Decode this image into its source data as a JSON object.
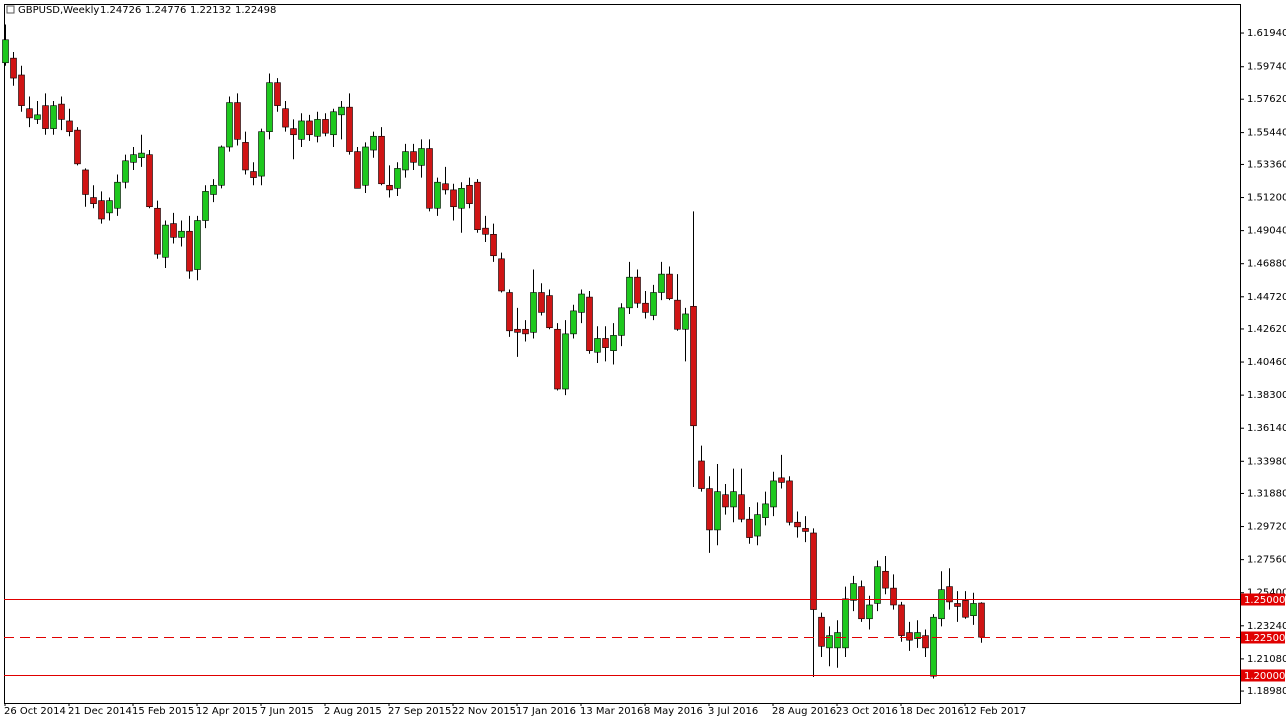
{
  "chart_data": {
    "type": "candlestick",
    "title": "GBPUSD,Weekly",
    "header_ohlc": [
      1.24726,
      1.24776,
      1.22132,
      1.22498
    ],
    "categories": [
      "26 Oct 2014",
      null,
      null,
      null,
      null,
      null,
      null,
      null,
      "21 Dec 2014",
      null,
      null,
      null,
      null,
      null,
      null,
      null,
      "15 Feb 2015",
      null,
      null,
      null,
      null,
      null,
      null,
      null,
      "12 Apr 2015",
      null,
      null,
      null,
      null,
      null,
      null,
      null,
      "7 Jun 2015",
      null,
      null,
      null,
      null,
      null,
      null,
      null,
      "2 Aug 2015",
      null,
      null,
      null,
      null,
      null,
      null,
      null,
      "27 Sep 2015",
      null,
      null,
      null,
      null,
      null,
      null,
      null,
      "22 Nov 2015",
      null,
      null,
      null,
      null,
      null,
      null,
      null,
      "17 Jan 2016",
      null,
      null,
      null,
      null,
      null,
      null,
      null,
      "13 Mar 2016",
      null,
      null,
      null,
      null,
      null,
      null,
      null,
      "8 May 2016",
      null,
      null,
      null,
      null,
      null,
      null,
      null,
      "3 Jul 2016",
      null,
      null,
      null,
      null,
      null,
      null,
      null,
      "28 Aug 2016",
      null,
      null,
      null,
      null,
      null,
      null,
      null,
      "23 Oct 2016",
      null,
      null,
      null,
      null,
      null,
      null,
      null,
      "18 Dec 2016",
      null,
      null,
      null,
      null,
      null,
      null,
      null,
      "12 Feb 2017",
      null,
      null
    ],
    "open": [
      1.6,
      1.603,
      1.592,
      1.57,
      1.563,
      1.572,
      1.557,
      1.573,
      1.562,
      1.556,
      1.53,
      1.512,
      1.51,
      1.502,
      1.505,
      1.522,
      1.535,
      1.538,
      1.54,
      1.505,
      1.473,
      1.495,
      1.486,
      1.49,
      1.465,
      1.497,
      1.514,
      1.52,
      1.545,
      1.574,
      1.548,
      1.529,
      1.526,
      1.555,
      1.587,
      1.57,
      1.557,
      1.55,
      1.562,
      1.552,
      1.563,
      1.553,
      1.566,
      1.571,
      1.542,
      1.52,
      1.543,
      1.552,
      1.52,
      1.518,
      1.53,
      1.542,
      1.533,
      1.544,
      1.505,
      1.521,
      1.517,
      1.505,
      1.52,
      1.522,
      1.492,
      1.488,
      1.472,
      1.45,
      1.426,
      1.426,
      1.424,
      1.45,
      1.448,
      1.426,
      1.387,
      1.423,
      1.437,
      1.447,
      1.411,
      1.42,
      1.412,
      1.422,
      1.44,
      1.46,
      1.443,
      1.435,
      1.45,
      1.462,
      1.445,
      1.426,
      1.441,
      1.34,
      1.322,
      1.295,
      1.318,
      1.31,
      1.318,
      1.302,
      1.291,
      1.303,
      1.31,
      1.329,
      1.327,
      1.3,
      1.296,
      1.293,
      1.238,
      1.218,
      1.218,
      1.218,
      1.249,
      1.258,
      1.237,
      1.247,
      1.268,
      1.257,
      1.246,
      1.228,
      1.224,
      1.226,
      1.1995,
      1.237,
      1.258,
      1.247,
      1.249,
      1.239,
      1.24726
    ],
    "high": [
      1.625,
      1.607,
      1.598,
      1.578,
      1.575,
      1.58,
      1.575,
      1.578,
      1.57,
      1.558,
      1.531,
      1.52,
      1.516,
      1.512,
      1.527,
      1.54,
      1.545,
      1.553,
      1.543,
      1.51,
      1.497,
      1.502,
      1.497,
      1.5,
      1.5,
      1.52,
      1.524,
      1.546,
      1.578,
      1.58,
      1.555,
      1.535,
      1.557,
      1.593,
      1.59,
      1.575,
      1.563,
      1.567,
      1.566,
      1.568,
      1.567,
      1.57,
      1.575,
      1.58,
      1.545,
      1.548,
      1.555,
      1.558,
      1.533,
      1.535,
      1.547,
      1.547,
      1.55,
      1.55,
      1.525,
      1.532,
      1.521,
      1.522,
      1.525,
      1.524,
      1.5,
      1.495,
      1.476,
      1.452,
      1.44,
      1.432,
      1.465,
      1.456,
      1.452,
      1.43,
      1.432,
      1.442,
      1.452,
      1.451,
      1.428,
      1.428,
      1.43,
      1.443,
      1.47,
      1.465,
      1.451,
      1.455,
      1.47,
      1.467,
      1.462,
      1.44,
      1.503,
      1.35,
      1.33,
      1.338,
      1.325,
      1.335,
      1.335,
      1.31,
      1.313,
      1.32,
      1.333,
      1.344,
      1.33,
      1.307,
      1.304,
      1.296,
      1.241,
      1.232,
      1.236,
      1.258,
      1.265,
      1.262,
      1.252,
      1.275,
      1.278,
      1.266,
      1.248,
      1.235,
      1.236,
      1.23,
      1.24,
      1.268,
      1.27,
      1.255,
      1.255,
      1.254,
      1.24776
    ],
    "low": [
      1.598,
      1.585,
      1.568,
      1.558,
      1.56,
      1.553,
      1.553,
      1.556,
      1.552,
      1.533,
      1.506,
      1.505,
      1.495,
      1.497,
      1.5,
      1.518,
      1.53,
      1.532,
      1.505,
      1.472,
      1.466,
      1.482,
      1.48,
      1.459,
      1.458,
      1.492,
      1.509,
      1.518,
      1.542,
      1.546,
      1.527,
      1.52,
      1.52,
      1.55,
      1.568,
      1.555,
      1.537,
      1.545,
      1.549,
      1.548,
      1.552,
      1.545,
      1.55,
      1.54,
      1.518,
      1.515,
      1.538,
      1.52,
      1.512,
      1.513,
      1.525,
      1.53,
      1.525,
      1.503,
      1.5,
      1.514,
      1.497,
      1.489,
      1.505,
      1.489,
      1.483,
      1.47,
      1.45,
      1.421,
      1.408,
      1.418,
      1.42,
      1.435,
      1.426,
      1.386,
      1.383,
      1.42,
      1.43,
      1.41,
      1.404,
      1.405,
      1.403,
      1.415,
      1.436,
      1.44,
      1.433,
      1.432,
      1.445,
      1.445,
      1.425,
      1.405,
      1.323,
      1.32,
      1.28,
      1.285,
      1.305,
      1.3,
      1.3,
      1.286,
      1.285,
      1.298,
      1.304,
      1.322,
      1.298,
      1.29,
      1.287,
      1.199,
      1.212,
      1.206,
      1.205,
      1.212,
      1.242,
      1.235,
      1.23,
      1.242,
      1.253,
      1.243,
      1.222,
      1.216,
      1.218,
      1.212,
      1.198,
      1.232,
      1.243,
      1.235,
      1.237,
      1.233,
      1.22132
    ],
    "close": [
      1.615,
      1.59,
      1.572,
      1.564,
      1.566,
      1.557,
      1.572,
      1.563,
      1.555,
      1.534,
      1.514,
      1.508,
      1.498,
      1.51,
      1.522,
      1.536,
      1.54,
      1.541,
      1.506,
      1.475,
      1.494,
      1.486,
      1.49,
      1.464,
      1.497,
      1.516,
      1.52,
      1.545,
      1.574,
      1.55,
      1.53,
      1.525,
      1.555,
      1.587,
      1.572,
      1.558,
      1.553,
      1.562,
      1.553,
      1.563,
      1.554,
      1.568,
      1.571,
      1.542,
      1.518,
      1.545,
      1.552,
      1.521,
      1.517,
      1.531,
      1.542,
      1.535,
      1.544,
      1.505,
      1.522,
      1.517,
      1.506,
      1.518,
      1.508,
      1.491,
      1.488,
      1.474,
      1.451,
      1.425,
      1.424,
      1.423,
      1.45,
      1.437,
      1.427,
      1.387,
      1.423,
      1.438,
      1.449,
      1.412,
      1.42,
      1.414,
      1.422,
      1.44,
      1.46,
      1.443,
      1.437,
      1.45,
      1.462,
      1.446,
      1.426,
      1.436,
      1.363,
      1.322,
      1.295,
      1.32,
      1.31,
      1.32,
      1.302,
      1.29,
      1.305,
      1.312,
      1.327,
      1.326,
      1.3,
      1.297,
      1.294,
      1.243,
      1.219,
      1.226,
      1.228,
      1.25,
      1.26,
      1.237,
      1.246,
      1.271,
      1.257,
      1.246,
      1.226,
      1.223,
      1.228,
      1.218,
      1.238,
      1.256,
      1.248,
      1.245,
      1.238,
      1.247,
      1.22498
    ],
    "up_color": "#1ec81e",
    "down_color": "#d01414",
    "ylim": [
      1.182,
      1.6377
    ],
    "yticks": [
      {
        "value": 1.6194,
        "label": "1.61940"
      },
      {
        "value": 1.5974,
        "label": "1.59740"
      },
      {
        "value": 1.5762,
        "label": "1.57620"
      },
      {
        "value": 1.5544,
        "label": "1.55440"
      },
      {
        "value": 1.5336,
        "label": "1.53360"
      },
      {
        "value": 1.512,
        "label": "1.51200"
      },
      {
        "value": 1.4904,
        "label": "1.49040"
      },
      {
        "value": 1.4688,
        "label": "1.46880"
      },
      {
        "value": 1.4472,
        "label": "1.44720"
      },
      {
        "value": 1.4262,
        "label": "1.42620"
      },
      {
        "value": 1.4046,
        "label": "1.40460"
      },
      {
        "value": 1.383,
        "label": "1.38300"
      },
      {
        "value": 1.3614,
        "label": "1.36140"
      },
      {
        "value": 1.3398,
        "label": "1.33980"
      },
      {
        "value": 1.3188,
        "label": "1.31880"
      },
      {
        "value": 1.2972,
        "label": "1.29720"
      },
      {
        "value": 1.2756,
        "label": "1.27560"
      },
      {
        "value": 1.254,
        "label": "1.25400"
      },
      {
        "value": 1.2324,
        "label": "1.23240"
      },
      {
        "value": 1.2108,
        "label": "1.21080"
      },
      {
        "value": 1.1898,
        "label": "1.18980"
      }
    ],
    "hlines": [
      {
        "value": 1.25,
        "label": "1.25000",
        "style": "solid"
      },
      {
        "value": 1.225,
        "label": "1.22500",
        "style": "dashed"
      },
      {
        "value": 1.2,
        "label": "1.20000",
        "style": "solid"
      }
    ],
    "hline_color": "#e00000",
    "grid": false
  }
}
